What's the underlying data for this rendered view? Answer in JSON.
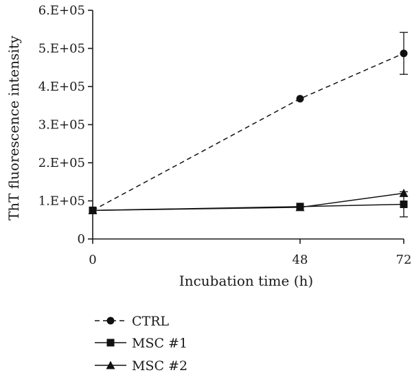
{
  "chart_data": {
    "type": "line",
    "x": [
      0,
      48,
      72
    ],
    "xlabel": "Incubation time (h)",
    "ylabel": "ThT fluorescence intensity",
    "xlim": [
      0,
      72
    ],
    "ylim": [
      0,
      600000
    ],
    "x_ticks": [
      "0",
      "48",
      "72"
    ],
    "y_ticks": [
      "0",
      "1.E+05",
      "2.E+05",
      "3.E+05",
      "4.E+05",
      "5.E+05",
      "6.E+05"
    ],
    "grid": false,
    "legend_position": "bottom-left",
    "series": [
      {
        "name": "CTRL",
        "marker": "circle",
        "line": "dashed",
        "values": [
          75000,
          368000,
          487000
        ],
        "error": [
          0,
          0,
          55000
        ]
      },
      {
        "name": "MSC #1",
        "marker": "square",
        "line": "solid",
        "values": [
          75000,
          85000,
          91000
        ],
        "error": [
          0,
          0,
          33000
        ]
      },
      {
        "name": "MSC #2",
        "marker": "triangle",
        "line": "solid",
        "values": [
          75000,
          83000,
          120000
        ],
        "error": [
          0,
          0,
          0
        ]
      }
    ]
  }
}
